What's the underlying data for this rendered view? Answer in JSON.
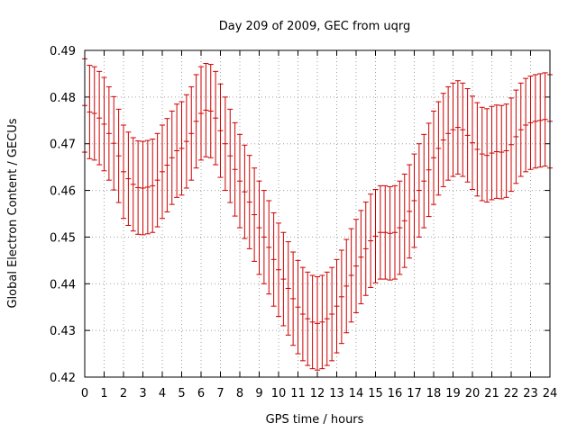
{
  "chart_data": {
    "type": "scatter",
    "title": "Day 209 of 2009, GEC from uqrg",
    "xlabel": "GPS time / hours",
    "ylabel": "Global Electron Content / GECUs",
    "xlim": [
      0,
      24
    ],
    "ylim": [
      0.42,
      0.49
    ],
    "xticks": [
      "0",
      "1",
      "2",
      "3",
      "4",
      "5",
      "6",
      "7",
      "8",
      "9",
      "10",
      "11",
      "12",
      "13",
      "14",
      "15",
      "16",
      "17",
      "18",
      "19",
      "20",
      "21",
      "22",
      "23",
      "24"
    ],
    "yticks": [
      "0.42",
      "0.43",
      "0.44",
      "0.45",
      "0.46",
      "0.47",
      "0.48",
      "0.49"
    ],
    "grid": true,
    "error_bar_halfwidth": 0.01,
    "color": "#cc0000",
    "series": [
      {
        "x": [
          0,
          0.25,
          0.5,
          0.75,
          1,
          1.25,
          1.5,
          1.75,
          2,
          2.25,
          2.5,
          2.75,
          3,
          3.25,
          3.5,
          3.75,
          4,
          4.25,
          4.5,
          4.75,
          5,
          5.25,
          5.5,
          5.75,
          6,
          6.25,
          6.5,
          6.75,
          7,
          7.25,
          7.5,
          7.75,
          8,
          8.25,
          8.5,
          8.75,
          9,
          9.25,
          9.5,
          9.75,
          10,
          10.25,
          10.5,
          10.75,
          11,
          11.25,
          11.5,
          11.75,
          12,
          12.25,
          12.5,
          12.75,
          13,
          13.25,
          13.5,
          13.75,
          14,
          14.25,
          14.5,
          14.75,
          15,
          15.25,
          15.5,
          15.75,
          16,
          16.25,
          16.5,
          16.75,
          17,
          17.25,
          17.5,
          17.75,
          18,
          18.25,
          18.5,
          18.75,
          19,
          19.25,
          19.5,
          19.75,
          20,
          20.25,
          20.5,
          20.75,
          21,
          21.25,
          21.5,
          21.75,
          22,
          22.25,
          22.5,
          22.75,
          23,
          23.25,
          23.5,
          23.75,
          24
        ],
        "y": [
          0.4782,
          0.4768,
          0.4765,
          0.4755,
          0.4742,
          0.4722,
          0.4701,
          0.4674,
          0.464,
          0.4625,
          0.4613,
          0.4606,
          0.4605,
          0.4607,
          0.461,
          0.4622,
          0.464,
          0.4654,
          0.467,
          0.4685,
          0.469,
          0.4705,
          0.4722,
          0.4748,
          0.4765,
          0.4772,
          0.477,
          0.4755,
          0.4728,
          0.47,
          0.4674,
          0.4645,
          0.462,
          0.4597,
          0.4575,
          0.4548,
          0.452,
          0.45,
          0.4478,
          0.4452,
          0.443,
          0.441,
          0.439,
          0.4368,
          0.435,
          0.4335,
          0.4325,
          0.4318,
          0.4315,
          0.4318,
          0.4325,
          0.4335,
          0.4352,
          0.4372,
          0.4395,
          0.4418,
          0.4438,
          0.4457,
          0.4475,
          0.4492,
          0.4502,
          0.451,
          0.451,
          0.4508,
          0.451,
          0.452,
          0.4535,
          0.4555,
          0.4578,
          0.46,
          0.462,
          0.4644,
          0.467,
          0.469,
          0.4708,
          0.4722,
          0.473,
          0.4735,
          0.473,
          0.4718,
          0.4702,
          0.4688,
          0.4678,
          0.4675,
          0.468,
          0.4683,
          0.4682,
          0.4685,
          0.4698,
          0.4715,
          0.473,
          0.474,
          0.4745,
          0.4748,
          0.475,
          0.4752,
          0.4748
        ]
      }
    ]
  }
}
